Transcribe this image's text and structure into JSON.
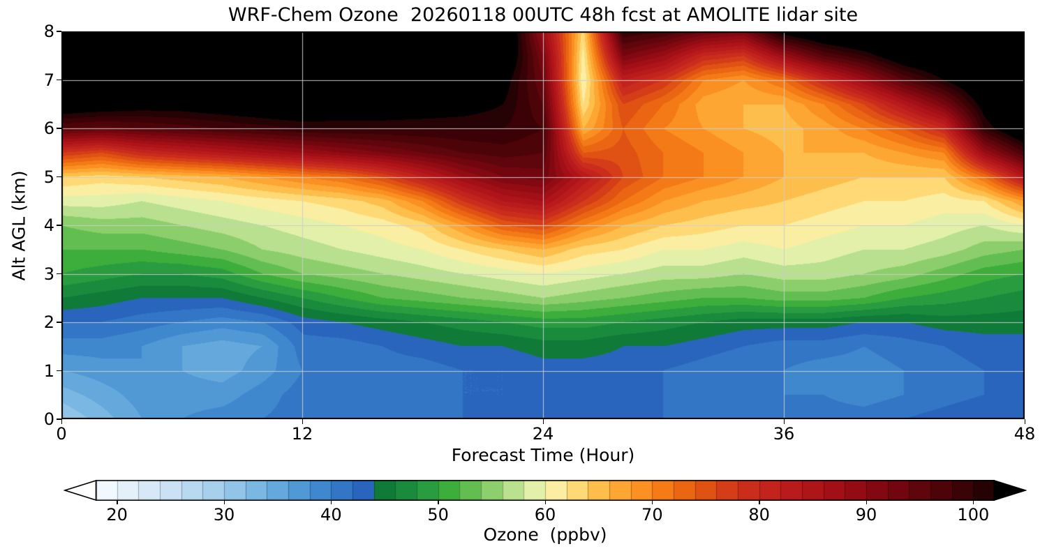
{
  "chart_data": {
    "type": "heatmap",
    "title": "WRF-Chem Ozone  20260118 00UTC 48h fcst at AMOLITE lidar site",
    "xlabel": "Forecast Time (Hour)",
    "ylabel": "Alt AGL (km)",
    "xlim": [
      0,
      48
    ],
    "ylim": [
      0,
      8
    ],
    "x_ticks": [
      0,
      12,
      24,
      36,
      48
    ],
    "y_ticks": [
      0,
      1,
      2,
      3,
      4,
      5,
      6,
      7,
      8
    ],
    "grid": true,
    "grid_x_lines": [
      12,
      24,
      36
    ],
    "grid_y_lines": [
      1,
      2,
      3,
      4,
      5,
      6,
      7
    ],
    "grid_color": "#cccccc",
    "x_hours": [
      0,
      2,
      4,
      6,
      8,
      10,
      12,
      14,
      16,
      18,
      20,
      22,
      24,
      26,
      28,
      30,
      32,
      34,
      36,
      38,
      40,
      42,
      44,
      46,
      48
    ],
    "y_km": [
      0,
      0.5,
      1,
      1.5,
      2,
      2.5,
      3,
      3.5,
      4,
      4.5,
      5,
      5.5,
      6,
      6.5,
      7,
      7.5,
      8
    ],
    "values_ppbv": [
      [
        30,
        33,
        36,
        38,
        39,
        40,
        41,
        41,
        41,
        42,
        42,
        43,
        43,
        43,
        43,
        42,
        42,
        42,
        41,
        41,
        41,
        42,
        43,
        44,
        44
      ],
      [
        33,
        35,
        37,
        37,
        37,
        39,
        41,
        40,
        40,
        41,
        42,
        42,
        43,
        43,
        43,
        42,
        41,
        41,
        40,
        40,
        39,
        40,
        41,
        42,
        43
      ],
      [
        36,
        37,
        38,
        36,
        35,
        37,
        40,
        40,
        41,
        41,
        42,
        42,
        43,
        43,
        43,
        42,
        41,
        40,
        40,
        39,
        39,
        40,
        41,
        42,
        43
      ],
      [
        39,
        39,
        38,
        36,
        35,
        36,
        41,
        41,
        42,
        43,
        44,
        44,
        45,
        45,
        44,
        44,
        43,
        42,
        41,
        41,
        40,
        41,
        42,
        43,
        43
      ],
      [
        42,
        42,
        41,
        40,
        39,
        40,
        43,
        44,
        45,
        46,
        47,
        48,
        49,
        49,
        48,
        47,
        46,
        45,
        45,
        45,
        44,
        44,
        45,
        45,
        45
      ],
      [
        46,
        45,
        44,
        44,
        44,
        46,
        48,
        50,
        52,
        53,
        54,
        55,
        56,
        55,
        54,
        53,
        52,
        52,
        53,
        53,
        52,
        50,
        49,
        48,
        47
      ],
      [
        50,
        49,
        48,
        48,
        49,
        52,
        54,
        55,
        56,
        57,
        58,
        59,
        60,
        59,
        58,
        57,
        57,
        56,
        57,
        57,
        56,
        55,
        53,
        51,
        50
      ],
      [
        52,
        52,
        52,
        53,
        54,
        56,
        57,
        58,
        59,
        60,
        62,
        64,
        66,
        63,
        62,
        60,
        60,
        59,
        60,
        59,
        58,
        58,
        57,
        55,
        54
      ],
      [
        54,
        55,
        55,
        56,
        57,
        58,
        59,
        60,
        61,
        63,
        68,
        74,
        76,
        70,
        66,
        64,
        63,
        62,
        62,
        61,
        60,
        60,
        59,
        58,
        60
      ],
      [
        59,
        59,
        58,
        59,
        60,
        61,
        62,
        63,
        65,
        70,
        78,
        84,
        86,
        78,
        72,
        68,
        66,
        65,
        64,
        63,
        62,
        62,
        61,
        62,
        68
      ],
      [
        64,
        63,
        64,
        65,
        66,
        68,
        70,
        72,
        76,
        82,
        88,
        92,
        93,
        84,
        76,
        72,
        70,
        68,
        66,
        65,
        64,
        64,
        64,
        72,
        84
      ],
      [
        78,
        76,
        80,
        82,
        84,
        86,
        88,
        90,
        92,
        94,
        96,
        97,
        96,
        74,
        75,
        72,
        70,
        68,
        66,
        66,
        66,
        68,
        70,
        88,
        98
      ],
      [
        96,
        95,
        96,
        97,
        98,
        99,
        100,
        100,
        100,
        100,
        100,
        100,
        98,
        66,
        74,
        70,
        68,
        66,
        65,
        67,
        70,
        74,
        80,
        100,
        108
      ],
      [
        106,
        105,
        104,
        104,
        105,
        106,
        107,
        106,
        106,
        105,
        104,
        102,
        96,
        62,
        76,
        72,
        67,
        66,
        66,
        70,
        76,
        84,
        92,
        104,
        110
      ],
      [
        110,
        108,
        108,
        108,
        109,
        110,
        110,
        110,
        110,
        110,
        108,
        104,
        94,
        60,
        82,
        78,
        70,
        68,
        72,
        80,
        88,
        96,
        102,
        108,
        110
      ],
      [
        110,
        110,
        110,
        110,
        110,
        110,
        110,
        110,
        110,
        110,
        110,
        108,
        92,
        61,
        92,
        88,
        80,
        78,
        88,
        96,
        100,
        106,
        108,
        110,
        110
      ],
      [
        110,
        110,
        110,
        110,
        110,
        110,
        110,
        110,
        110,
        110,
        110,
        110,
        88,
        63,
        100,
        98,
        94,
        92,
        104,
        108,
        110,
        110,
        110,
        110,
        110
      ]
    ],
    "colorbar": {
      "label": "Ozone  (ppbv)",
      "ticks": [
        20,
        30,
        40,
        50,
        60,
        70,
        80,
        90,
        100
      ],
      "range": [
        18,
        102
      ],
      "step": 2,
      "under_color": "#ffffff",
      "over_color": "#000000",
      "stops": [
        [
          18,
          "#f7fbff"
        ],
        [
          22,
          "#ddedf9"
        ],
        [
          26,
          "#c3def2"
        ],
        [
          30,
          "#9ccbe9"
        ],
        [
          34,
          "#6fb0e0"
        ],
        [
          38,
          "#4691d1"
        ],
        [
          41,
          "#3376c6"
        ],
        [
          44,
          "#265cb8"
        ],
        [
          45,
          "#107a38"
        ],
        [
          48,
          "#1f9340"
        ],
        [
          51,
          "#3dad3c"
        ],
        [
          54,
          "#76c65c"
        ],
        [
          56,
          "#a2d77c"
        ],
        [
          58,
          "#cfeaa0"
        ],
        [
          60,
          "#f7f5b2"
        ],
        [
          62,
          "#fee793"
        ],
        [
          64,
          "#fecb58"
        ],
        [
          66,
          "#feb13e"
        ],
        [
          68,
          "#fd9b28"
        ],
        [
          70,
          "#f9861b"
        ],
        [
          72,
          "#f06f13"
        ],
        [
          74,
          "#e55c11"
        ],
        [
          76,
          "#da4715"
        ],
        [
          78,
          "#d0331c"
        ],
        [
          80,
          "#c6271e"
        ],
        [
          84,
          "#b4171b"
        ],
        [
          88,
          "#9b0d14"
        ],
        [
          92,
          "#7a0710"
        ],
        [
          96,
          "#56040a"
        ],
        [
          100,
          "#310205"
        ],
        [
          102,
          "#190102"
        ]
      ]
    }
  }
}
